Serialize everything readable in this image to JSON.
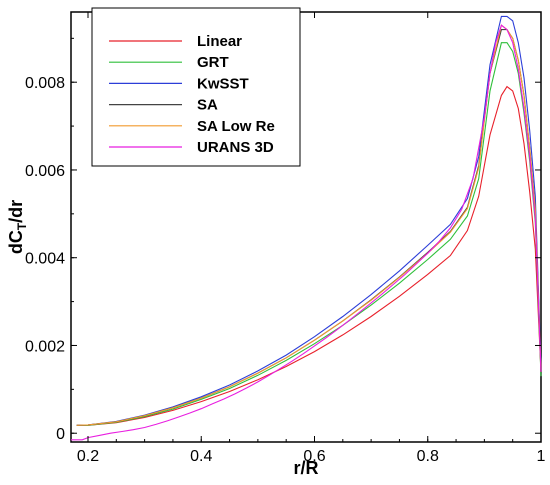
{
  "chart_data": {
    "type": "line",
    "title": "",
    "xlabel": "r/R",
    "ylabel_main": "dC",
    "ylabel_sub": "T",
    "ylabel_tail": "/dr",
    "xlim": [
      0.17,
      1.0
    ],
    "ylim": [
      -0.0002,
      0.0096
    ],
    "xticks": [
      0.2,
      0.4,
      0.6,
      0.8,
      1.0
    ],
    "xtick_labels": [
      "0.2",
      "0.4",
      "0.6",
      "0.8",
      "1"
    ],
    "yticks": [
      0,
      0.002,
      0.004,
      0.006,
      0.008
    ],
    "ytick_labels": [
      "0",
      "0.002",
      "0.004",
      "0.006",
      "0.008"
    ],
    "grid": false,
    "legend_position": "top-left",
    "series": [
      {
        "name": "Linear",
        "color": "#e8212b",
        "points": [
          [
            0.18,
            0.00018
          ],
          [
            0.2,
            0.00018
          ],
          [
            0.25,
            0.00024
          ],
          [
            0.3,
            0.00036
          ],
          [
            0.35,
            0.00052
          ],
          [
            0.4,
            0.00072
          ],
          [
            0.45,
            0.00095
          ],
          [
            0.5,
            0.00122
          ],
          [
            0.55,
            0.00152
          ],
          [
            0.6,
            0.00186
          ],
          [
            0.65,
            0.00224
          ],
          [
            0.7,
            0.00266
          ],
          [
            0.75,
            0.00312
          ],
          [
            0.8,
            0.00362
          ],
          [
            0.84,
            0.00405
          ],
          [
            0.87,
            0.00462
          ],
          [
            0.89,
            0.0054
          ],
          [
            0.91,
            0.0068
          ],
          [
            0.93,
            0.0077
          ],
          [
            0.94,
            0.0079
          ],
          [
            0.95,
            0.0078
          ],
          [
            0.96,
            0.0074
          ],
          [
            0.97,
            0.0066
          ],
          [
            0.98,
            0.0055
          ],
          [
            0.99,
            0.0042
          ],
          [
            1.0,
            0.0014
          ]
        ]
      },
      {
        "name": "GRT",
        "color": "#2fbf3a",
        "points": [
          [
            0.18,
            0.00018
          ],
          [
            0.2,
            0.00018
          ],
          [
            0.25,
            0.00025
          ],
          [
            0.3,
            0.00038
          ],
          [
            0.35,
            0.00055
          ],
          [
            0.4,
            0.00077
          ],
          [
            0.45,
            0.00102
          ],
          [
            0.5,
            0.00132
          ],
          [
            0.55,
            0.00166
          ],
          [
            0.6,
            0.00204
          ],
          [
            0.65,
            0.00246
          ],
          [
            0.7,
            0.00292
          ],
          [
            0.75,
            0.00342
          ],
          [
            0.8,
            0.00396
          ],
          [
            0.84,
            0.00442
          ],
          [
            0.87,
            0.00495
          ],
          [
            0.89,
            0.0058
          ],
          [
            0.91,
            0.0078
          ],
          [
            0.93,
            0.0089
          ],
          [
            0.94,
            0.0089
          ],
          [
            0.95,
            0.0087
          ],
          [
            0.96,
            0.0082
          ],
          [
            0.97,
            0.0073
          ],
          [
            0.98,
            0.0062
          ],
          [
            0.99,
            0.0048
          ],
          [
            1.0,
            0.0013
          ]
        ]
      },
      {
        "name": "KwSST",
        "color": "#2c3ed8",
        "points": [
          [
            0.18,
            0.00018
          ],
          [
            0.2,
            0.00019
          ],
          [
            0.25,
            0.00027
          ],
          [
            0.3,
            0.00041
          ],
          [
            0.35,
            0.0006
          ],
          [
            0.4,
            0.00083
          ],
          [
            0.45,
            0.0011
          ],
          [
            0.5,
            0.00142
          ],
          [
            0.55,
            0.00178
          ],
          [
            0.6,
            0.0022
          ],
          [
            0.65,
            0.00266
          ],
          [
            0.7,
            0.00316
          ],
          [
            0.75,
            0.0037
          ],
          [
            0.8,
            0.00428
          ],
          [
            0.84,
            0.00476
          ],
          [
            0.87,
            0.00535
          ],
          [
            0.89,
            0.0063
          ],
          [
            0.91,
            0.0084
          ],
          [
            0.93,
            0.0095
          ],
          [
            0.94,
            0.0095
          ],
          [
            0.95,
            0.0094
          ],
          [
            0.96,
            0.0089
          ],
          [
            0.97,
            0.0081
          ],
          [
            0.98,
            0.0069
          ],
          [
            0.99,
            0.0054
          ],
          [
            1.0,
            0.0015
          ]
        ]
      },
      {
        "name": "SA",
        "color": "#444444",
        "points": [
          [
            0.18,
            0.00018
          ],
          [
            0.2,
            0.00019
          ],
          [
            0.25,
            0.00026
          ],
          [
            0.3,
            0.0004
          ],
          [
            0.35,
            0.00058
          ],
          [
            0.4,
            0.0008
          ],
          [
            0.45,
            0.00106
          ],
          [
            0.5,
            0.00137
          ],
          [
            0.55,
            0.00172
          ],
          [
            0.6,
            0.00212
          ],
          [
            0.65,
            0.00256
          ],
          [
            0.7,
            0.00304
          ],
          [
            0.75,
            0.00356
          ],
          [
            0.8,
            0.00412
          ],
          [
            0.84,
            0.0046
          ],
          [
            0.87,
            0.00515
          ],
          [
            0.89,
            0.0061
          ],
          [
            0.91,
            0.0082
          ],
          [
            0.93,
            0.0092
          ],
          [
            0.94,
            0.0092
          ],
          [
            0.95,
            0.009
          ],
          [
            0.96,
            0.0085
          ],
          [
            0.97,
            0.0077
          ],
          [
            0.98,
            0.0065
          ],
          [
            0.99,
            0.0051
          ],
          [
            1.0,
            0.0014
          ]
        ]
      },
      {
        "name": "SA Low Re",
        "color": "#f29a2e",
        "points": [
          [
            0.18,
            0.00018
          ],
          [
            0.2,
            0.00019
          ],
          [
            0.25,
            0.00026
          ],
          [
            0.3,
            0.0004
          ],
          [
            0.35,
            0.00058
          ],
          [
            0.4,
            0.0008
          ],
          [
            0.45,
            0.00106
          ],
          [
            0.5,
            0.00137
          ],
          [
            0.55,
            0.00172
          ],
          [
            0.6,
            0.00212
          ],
          [
            0.65,
            0.00256
          ],
          [
            0.7,
            0.00303
          ],
          [
            0.75,
            0.00355
          ],
          [
            0.8,
            0.0041
          ],
          [
            0.84,
            0.00458
          ],
          [
            0.87,
            0.00512
          ],
          [
            0.89,
            0.00605
          ],
          [
            0.91,
            0.0082
          ],
          [
            0.93,
            0.0093
          ],
          [
            0.94,
            0.0092
          ],
          [
            0.95,
            0.009
          ],
          [
            0.96,
            0.0085
          ],
          [
            0.97,
            0.0077
          ],
          [
            0.98,
            0.0065
          ],
          [
            0.99,
            0.0051
          ],
          [
            1.0,
            0.0014
          ]
        ]
      },
      {
        "name": "URANS 3D",
        "color": "#e81ee0",
        "points": [
          [
            0.17,
            -0.00015
          ],
          [
            0.19,
            -0.00015
          ],
          [
            0.2,
            -0.0001
          ],
          [
            0.22,
            -5e-05
          ],
          [
            0.24,
            0.0
          ],
          [
            0.26,
            4e-05
          ],
          [
            0.28,
            8e-05
          ],
          [
            0.3,
            0.00013
          ],
          [
            0.32,
            0.0002
          ],
          [
            0.34,
            0.00028
          ],
          [
            0.36,
            0.00037
          ],
          [
            0.38,
            0.00046
          ],
          [
            0.4,
            0.00056
          ],
          [
            0.42,
            0.00067
          ],
          [
            0.44,
            0.00078
          ],
          [
            0.46,
            0.0009
          ],
          [
            0.48,
            0.00103
          ],
          [
            0.5,
            0.00117
          ],
          [
            0.52,
            0.00132
          ],
          [
            0.54,
            0.00148
          ],
          [
            0.56,
            0.00164
          ],
          [
            0.58,
            0.00181
          ],
          [
            0.6,
            0.00199
          ],
          [
            0.62,
            0.00217
          ],
          [
            0.64,
            0.00236
          ],
          [
            0.66,
            0.00256
          ],
          [
            0.68,
            0.00276
          ],
          [
            0.7,
            0.00297
          ],
          [
            0.72,
            0.00318
          ],
          [
            0.74,
            0.0034
          ],
          [
            0.76,
            0.00362
          ],
          [
            0.78,
            0.00386
          ],
          [
            0.8,
            0.0041
          ],
          [
            0.82,
            0.00437
          ],
          [
            0.84,
            0.00468
          ],
          [
            0.86,
            0.0051
          ],
          [
            0.88,
            0.0058
          ],
          [
            0.9,
            0.0072
          ],
          [
            0.91,
            0.0082
          ],
          [
            0.92,
            0.0089
          ],
          [
            0.93,
            0.0093
          ],
          [
            0.94,
            0.0092
          ],
          [
            0.95,
            0.0089
          ],
          [
            0.96,
            0.0083
          ],
          [
            0.97,
            0.0074
          ],
          [
            0.98,
            0.0063
          ],
          [
            0.99,
            0.0049
          ],
          [
            1.0,
            0.0014
          ]
        ]
      }
    ]
  }
}
